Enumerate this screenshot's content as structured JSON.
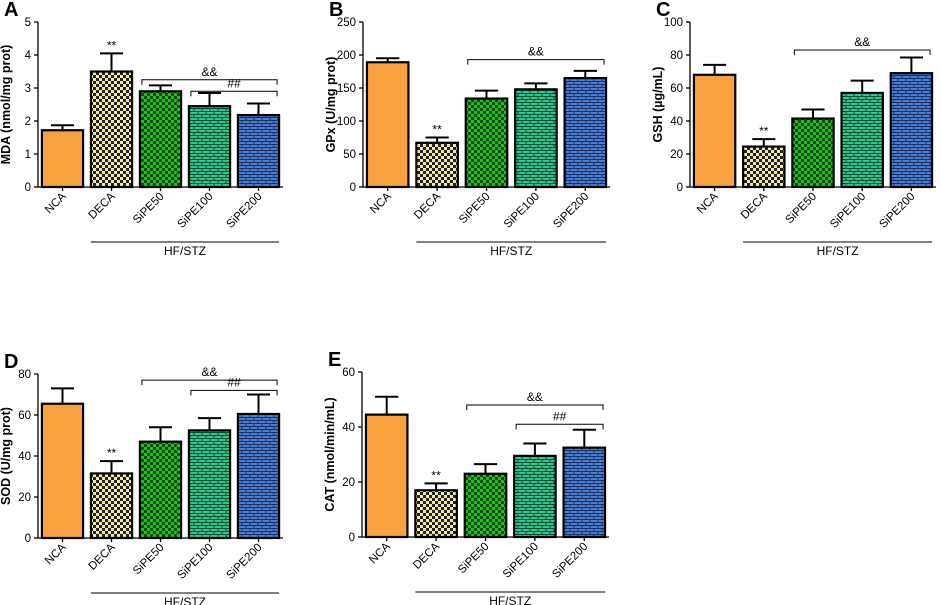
{
  "colors": {
    "NCA": "#f9a03f",
    "DECA": "#f2e9a6",
    "SiPE50": "#1fbf1f",
    "SiPE100": "#2ec98a",
    "SiPE200": "#4a7fd0",
    "line": "#000000"
  },
  "chart_data": [
    {
      "panel": "A",
      "type": "bar",
      "ylabel": "MDA (nmol/mg prot)",
      "ylim": [
        0,
        5
      ],
      "yticks": [
        0,
        1,
        2,
        3,
        4,
        5
      ],
      "categories": [
        "NCA",
        "DECA",
        "SiPE50",
        "SiPE100",
        "SiPE200"
      ],
      "values": [
        1.72,
        3.5,
        2.9,
        2.45,
        2.18
      ],
      "errors": [
        0.15,
        0.55,
        0.18,
        0.4,
        0.35
      ],
      "group_label": "HF/STZ",
      "stars": {
        "index": 1,
        "text": "**"
      },
      "brackets": [
        {
          "text": "&&",
          "from": 2,
          "to": 4,
          "level": 3.25
        },
        {
          "text": "##",
          "from": 3,
          "to": 4,
          "level": 2.9
        }
      ]
    },
    {
      "panel": "B",
      "type": "bar",
      "ylabel": "GPx (U/mg prot)",
      "ylim": [
        0,
        250
      ],
      "yticks": [
        0,
        50,
        100,
        150,
        200,
        250
      ],
      "categories": [
        "NCA",
        "DECA",
        "SiPE50",
        "SiPE100",
        "SiPE200"
      ],
      "values": [
        189,
        67,
        134,
        148,
        165
      ],
      "errors": [
        6,
        8,
        12,
        9,
        11
      ],
      "group_label": "HF/STZ",
      "stars": {
        "index": 1,
        "text": "**"
      },
      "brackets": [
        {
          "text": "&&",
          "from": 2,
          "to": 4,
          "level": 193
        }
      ]
    },
    {
      "panel": "C",
      "type": "bar",
      "ylabel": "GSH (µg/mL)",
      "ylim": [
        0,
        100
      ],
      "yticks": [
        0,
        20,
        40,
        60,
        80,
        100
      ],
      "categories": [
        "NCA",
        "DECA",
        "SiPE50",
        "SiPE100",
        "SiPE200"
      ],
      "values": [
        68,
        24.5,
        41.5,
        57,
        69
      ],
      "errors": [
        6,
        4.5,
        5.5,
        7.5,
        9.5
      ],
      "group_label": "HF/STZ",
      "stars": {
        "index": 1,
        "text": "**"
      },
      "brackets": [
        {
          "text": "&&",
          "from": 2,
          "to": 4,
          "level": 83
        }
      ]
    },
    {
      "panel": "D",
      "type": "bar",
      "ylabel": "SOD (U/mg prot)",
      "ylim": [
        0,
        80
      ],
      "yticks": [
        0,
        20,
        40,
        60,
        80
      ],
      "categories": [
        "NCA",
        "DECA",
        "SiPE50",
        "SiPE100",
        "SiPE200"
      ],
      "values": [
        65.5,
        31.5,
        47,
        52.5,
        60.5
      ],
      "errors": [
        7.5,
        6,
        7,
        6,
        9.5
      ],
      "group_label": "HF/STZ",
      "stars": {
        "index": 1,
        "text": "**"
      },
      "brackets": [
        {
          "text": "&&",
          "from": 2,
          "to": 4,
          "level": 77
        },
        {
          "text": "##",
          "from": 3,
          "to": 4,
          "level": 72
        }
      ]
    },
    {
      "panel": "E",
      "type": "bar",
      "ylabel": "CAT (nmol/min/mL)",
      "ylim": [
        0,
        60
      ],
      "yticks": [
        0,
        20,
        40,
        60
      ],
      "categories": [
        "NCA",
        "DECA",
        "SiPE50",
        "SiPE100",
        "SiPE200"
      ],
      "values": [
        44.5,
        17,
        23,
        29.5,
        32.5
      ],
      "errors": [
        6.5,
        2.5,
        3.5,
        4.5,
        6.5
      ],
      "group_label": "HF/STZ",
      "stars": {
        "index": 1,
        "text": "**"
      },
      "brackets": [
        {
          "text": "&&",
          "from": 2,
          "to": 4,
          "level": 48
        },
        {
          "text": "##",
          "from": 3,
          "to": 4,
          "level": 41
        }
      ]
    }
  ]
}
